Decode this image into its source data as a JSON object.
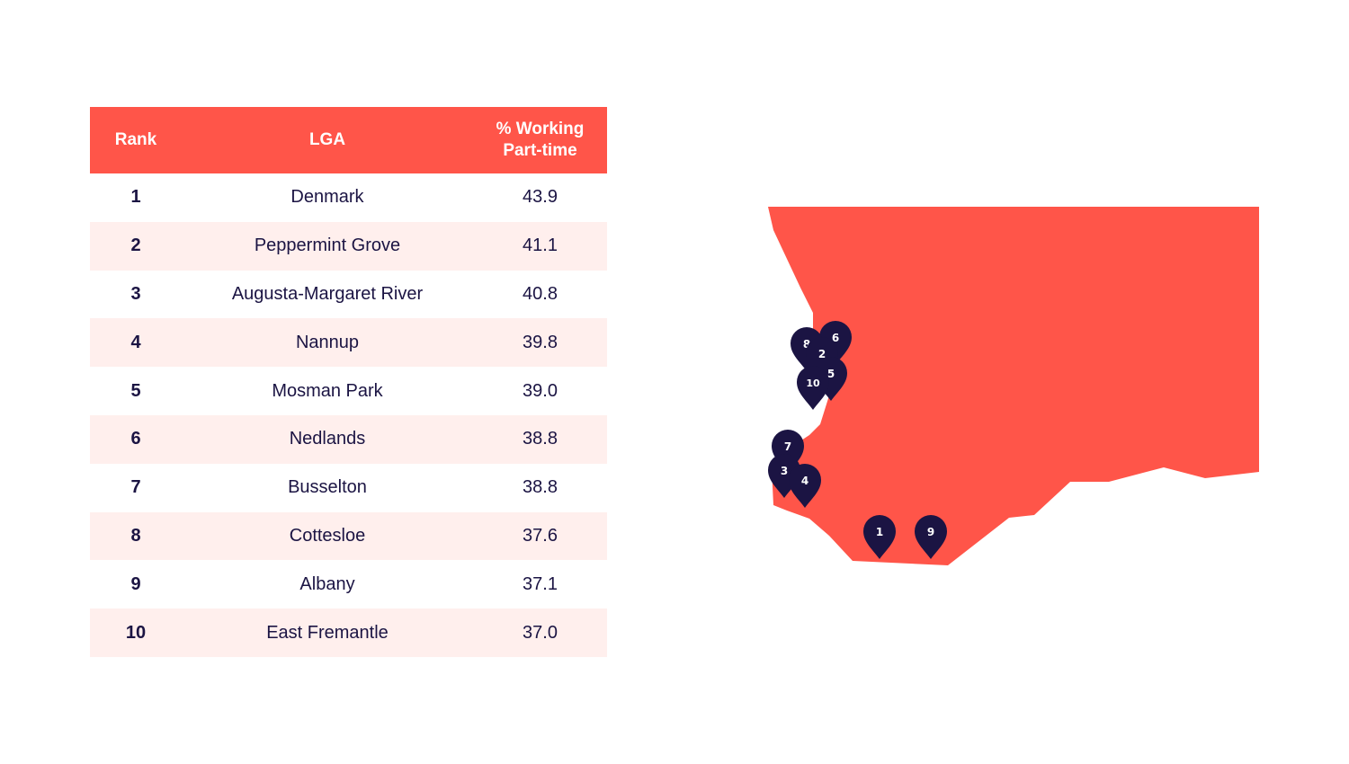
{
  "table": {
    "headers": {
      "rank": "Rank",
      "lga": "LGA",
      "pct_line1": "% Working",
      "pct_line2": "Part-time"
    },
    "rows": [
      {
        "rank": "1",
        "lga": "Denmark",
        "pct": "43.9"
      },
      {
        "rank": "2",
        "lga": "Peppermint Grove",
        "pct": "41.1"
      },
      {
        "rank": "3",
        "lga": "Augusta-Margaret River",
        "pct": "40.8"
      },
      {
        "rank": "4",
        "lga": "Nannup",
        "pct": "39.8"
      },
      {
        "rank": "5",
        "lga": "Mosman Park",
        "pct": "39.0"
      },
      {
        "rank": "6",
        "lga": "Nedlands",
        "pct": "38.8"
      },
      {
        "rank": "7",
        "lga": "Busselton",
        "pct": "38.8"
      },
      {
        "rank": "8",
        "lga": "Cottesloe",
        "pct": "37.6"
      },
      {
        "rank": "9",
        "lga": "Albany",
        "pct": "37.1"
      },
      {
        "rank": "10",
        "lga": "East Fremantle",
        "pct": "37.0"
      }
    ]
  },
  "map": {
    "land_color": "#ff5549",
    "pin_color": "#1b1443",
    "pins": [
      "1",
      "9",
      "3",
      "4",
      "7",
      "10",
      "5",
      "8",
      "2",
      "6"
    ]
  }
}
